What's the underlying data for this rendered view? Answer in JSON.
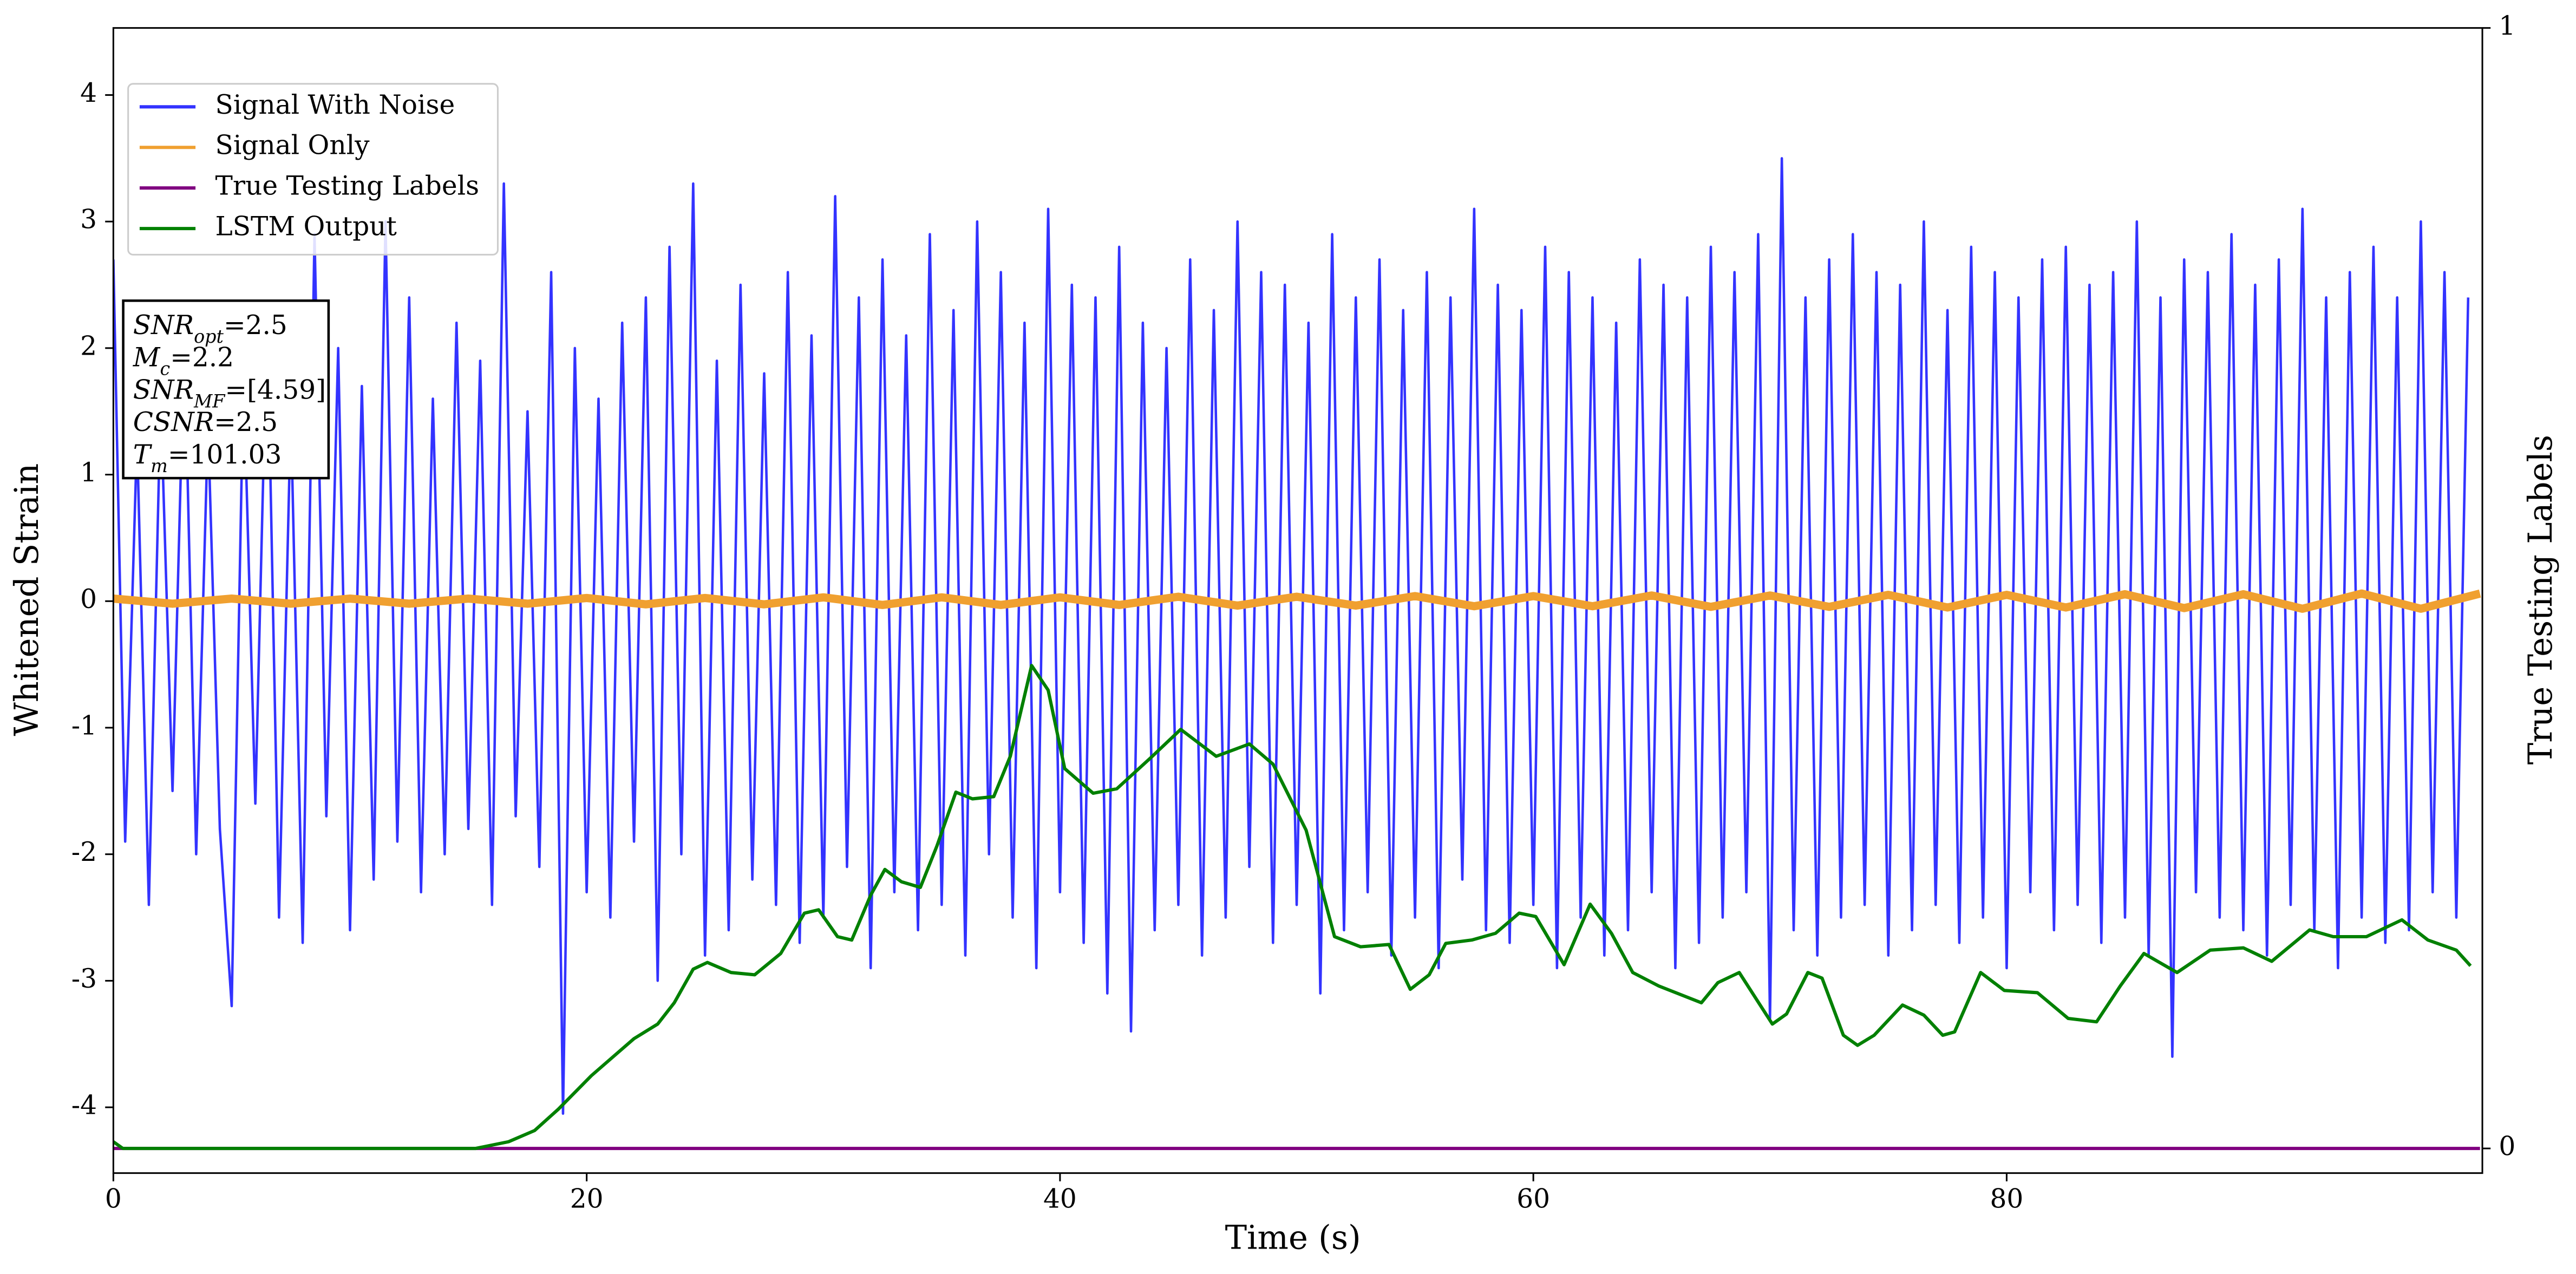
{
  "chart_data": {
    "type": "line",
    "xlabel": "Time (s)",
    "ylabel": "Whitened Strain",
    "y2label": "True Testing Labels",
    "xlim": [
      0,
      100.1
    ],
    "xticks": [
      0,
      20,
      40,
      60,
      80
    ],
    "ylim": [
      -4.52,
      4.53
    ],
    "yticks": [
      -4,
      -3,
      -2,
      -1,
      0,
      1,
      2,
      3,
      4
    ],
    "y2lim": [
      -0.022,
      1
    ],
    "y2ticks": [
      0,
      1
    ],
    "legend": "upper left",
    "annotation": [
      {
        "main": "SNR",
        "sub": "opt",
        "rest": "=2.5"
      },
      {
        "main": "M",
        "sub": "c",
        "rest": "=2.2"
      },
      {
        "main": "SNR",
        "sub": "MF",
        "rest": "=[4.59]"
      },
      {
        "main": "CSNR",
        "rest": "=2.5"
      },
      {
        "main": "T",
        "sub": "m",
        "rest": "=101.03"
      }
    ],
    "series": [
      {
        "name": "Signal With Noise",
        "color": "#3333ff",
        "x": [
          0,
          0.5,
          1,
          1.5,
          2,
          2.5,
          3,
          3.5,
          4,
          4.5,
          5,
          5.5,
          6,
          6.5,
          7,
          7.5,
          8,
          8.5,
          9,
          9.5,
          10,
          10.5,
          11,
          11.5,
          12,
          12.5,
          13,
          13.5,
          14,
          14.5,
          15,
          15.5,
          16,
          16.5,
          17,
          17.5,
          18,
          18.5,
          19,
          19.5,
          20,
          20.5,
          21,
          21.5,
          22,
          22.5,
          23,
          23.5,
          24,
          24.5,
          25,
          25.5,
          26,
          26.5,
          27,
          27.5,
          28,
          28.5,
          29,
          29.5,
          30,
          30.5,
          31,
          31.5,
          32,
          32.5,
          33,
          33.5,
          34,
          34.5,
          35,
          35.5,
          36,
          36.5,
          37,
          37.5,
          38,
          38.5,
          39,
          39.5,
          40,
          40.5,
          41,
          41.5,
          42,
          42.5,
          43,
          43.5,
          44,
          44.5,
          45,
          45.5,
          46,
          46.5,
          47,
          47.5,
          48,
          48.5,
          49,
          49.5,
          50,
          50.5,
          51,
          51.5,
          52,
          52.5,
          53,
          53.5,
          54,
          54.5,
          55,
          55.5,
          56,
          56.5,
          57,
          57.5,
          58,
          58.5,
          59,
          59.5,
          60,
          60.5,
          61,
          61.5,
          62,
          62.5,
          63,
          63.5,
          64,
          64.5,
          65,
          65.5,
          66,
          66.5,
          67,
          67.5,
          68,
          68.5,
          69,
          69.5,
          70,
          70.5,
          71,
          71.5,
          72,
          72.5,
          73,
          73.5,
          74,
          74.5,
          75,
          75.5,
          76,
          76.5,
          77,
          77.5,
          78,
          78.5,
          79,
          79.5,
          80,
          80.5,
          81,
          81.5,
          82,
          82.5,
          83,
          83.5,
          84,
          84.5,
          85,
          85.5,
          86,
          86.5,
          87,
          87.5,
          88,
          88.5,
          89,
          89.5,
          90,
          90.5,
          91,
          91.5,
          92,
          92.5,
          93,
          93.5,
          94,
          94.5,
          95,
          95.5,
          96,
          96.5,
          97,
          97.5,
          98,
          98.5,
          99,
          99.5
        ],
        "values": [
          2.7,
          -1.9,
          1.3,
          -2.4,
          1.6,
          -1.5,
          2.1,
          -2.0,
          1.4,
          -1.8,
          -3.2,
          1.8,
          -1.6,
          2.3,
          -2.5,
          1.5,
          -2.7,
          2.9,
          -1.7,
          2.0,
          -2.6,
          1.7,
          -2.2,
          3.0,
          -1.9,
          2.4,
          -2.3,
          1.6,
          -2.0,
          2.2,
          -1.8,
          1.9,
          -2.4,
          3.3,
          -1.7,
          1.5,
          -2.1,
          2.6,
          -4.05,
          2.0,
          -2.3,
          1.6,
          -2.5,
          2.2,
          -1.9,
          2.4,
          -3.0,
          2.8,
          -2.0,
          3.3,
          -2.8,
          1.9,
          -2.6,
          2.5,
          -2.2,
          1.8,
          -2.4,
          2.6,
          -2.7,
          2.1,
          -2.5,
          3.2,
          -2.1,
          2.4,
          -2.9,
          2.7,
          -2.3,
          2.1,
          -2.6,
          2.9,
          -2.4,
          2.3,
          -2.8,
          3.0,
          -2.0,
          2.6,
          -2.5,
          2.2,
          -2.9,
          3.1,
          -2.3,
          2.5,
          -2.7,
          2.4,
          -3.1,
          2.8,
          -3.4,
          2.2,
          -2.6,
          2.0,
          -2.4,
          2.7,
          -2.8,
          2.3,
          -2.5,
          3.0,
          -2.1,
          2.6,
          -2.7,
          2.5,
          -2.4,
          2.2,
          -3.1,
          2.9,
          -2.6,
          2.4,
          -2.3,
          2.7,
          -2.8,
          2.3,
          -2.5,
          2.6,
          -2.9,
          2.4,
          -2.2,
          3.1,
          -2.6,
          2.5,
          -2.7,
          2.3,
          -2.4,
          2.8,
          -2.9,
          2.6,
          -2.5,
          2.4,
          -2.8,
          2.2,
          -2.6,
          2.7,
          -2.3,
          2.5,
          -2.9,
          2.4,
          -2.7,
          2.8,
          -2.5,
          2.6,
          -2.3,
          2.9,
          -3.3,
          3.5,
          -2.6,
          2.4,
          -2.8,
          2.7,
          -2.5,
          2.9,
          -2.4,
          2.6,
          -2.8,
          2.5,
          -2.6,
          3.0,
          -2.4,
          2.3,
          -2.7,
          2.8,
          -2.5,
          2.6,
          -2.9,
          2.4,
          -2.3,
          2.7,
          -2.6,
          2.8,
          -2.4,
          2.5,
          -2.7,
          2.6,
          -2.5,
          3.0,
          -2.8,
          2.4,
          -3.6,
          2.7,
          -2.3,
          2.6,
          -2.5,
          2.9,
          -2.6,
          2.5,
          -2.8,
          2.7,
          -2.4,
          3.1,
          -2.6,
          2.4,
          -2.9,
          2.6,
          -2.5,
          2.8,
          -2.7,
          2.4,
          -2.6,
          3.0,
          -2.3,
          2.6,
          -2.5,
          2.4
        ]
      },
      {
        "name": "Signal Only",
        "color": "#f0a030",
        "x": [
          0,
          2.5,
          5,
          7.5,
          10,
          12.5,
          15,
          17.5,
          20,
          22.5,
          25,
          27.5,
          30,
          32.5,
          35,
          37.5,
          40,
          42.5,
          45,
          47.5,
          50,
          52.5,
          55,
          57.5,
          60,
          62.5,
          65,
          67.5,
          70,
          72.5,
          75,
          77.5,
          80,
          82.5,
          85,
          87.5,
          90,
          92.5,
          95,
          97.5,
          100
        ],
        "values": [
          0.02,
          -0.02,
          0.02,
          -0.02,
          0.02,
          -0.02,
          0.02,
          -0.02,
          0.025,
          -0.025,
          0.025,
          -0.025,
          0.03,
          -0.03,
          0.03,
          -0.03,
          0.03,
          -0.03,
          0.035,
          -0.035,
          0.035,
          -0.035,
          0.04,
          -0.04,
          0.04,
          -0.04,
          0.045,
          -0.045,
          0.045,
          -0.045,
          0.05,
          -0.05,
          0.05,
          -0.05,
          0.055,
          -0.055,
          0.055,
          -0.06,
          0.06,
          -0.06,
          0.06
        ]
      },
      {
        "name": "True Testing Labels",
        "color": "#800080",
        "axis": "y2",
        "x": [
          0,
          100
        ],
        "values": [
          0,
          0
        ]
      },
      {
        "name": "LSTM Output",
        "color": "#008000",
        "axis": "y2",
        "x": [
          0,
          0.4,
          15.3,
          16.7,
          17.8,
          18.8,
          20.2,
          22,
          23,
          23.7,
          24.5,
          25.1,
          26.1,
          27.1,
          28.2,
          29.2,
          29.8,
          30.6,
          31.2,
          32,
          32.6,
          33.3,
          34.1,
          34.8,
          35.6,
          36.3,
          37.2,
          37.9,
          38.8,
          39.5,
          40.2,
          41.4,
          42.4,
          43.8,
          45.1,
          46.6,
          48,
          49,
          50.4,
          51.6,
          52.7,
          53.9,
          54.8,
          55.6,
          56.3,
          57.4,
          58.4,
          59.4,
          60.1,
          61.3,
          62.4,
          63.3,
          64.2,
          65.3,
          67.1,
          67.8,
          68.7,
          70.1,
          70.7,
          71.6,
          72.2,
          73.1,
          73.7,
          74.4,
          75.6,
          76.5,
          77.3,
          77.8,
          78.9,
          79.9,
          81.3,
          82.6,
          83.8,
          84.8,
          85.8,
          87.2,
          88.6,
          90,
          91.2,
          92.8,
          93.8,
          95.2,
          96.7,
          97.8,
          99,
          99.6
        ],
        "values": [
          0.006,
          0,
          0,
          0.006,
          0.016,
          0.035,
          0.065,
          0.098,
          0.111,
          0.13,
          0.16,
          0.166,
          0.157,
          0.155,
          0.174,
          0.21,
          0.213,
          0.189,
          0.186,
          0.226,
          0.249,
          0.238,
          0.233,
          0.27,
          0.318,
          0.312,
          0.314,
          0.35,
          0.431,
          0.409,
          0.339,
          0.317,
          0.321,
          0.348,
          0.374,
          0.35,
          0.361,
          0.343,
          0.284,
          0.189,
          0.18,
          0.182,
          0.142,
          0.155,
          0.183,
          0.186,
          0.192,
          0.21,
          0.207,
          0.164,
          0.218,
          0.192,
          0.157,
          0.145,
          0.13,
          0.148,
          0.157,
          0.111,
          0.12,
          0.157,
          0.152,
          0.101,
          0.092,
          0.101,
          0.128,
          0.119,
          0.101,
          0.104,
          0.157,
          0.141,
          0.139,
          0.116,
          0.113,
          0.145,
          0.174,
          0.157,
          0.177,
          0.179,
          0.167,
          0.195,
          0.189,
          0.189,
          0.204,
          0.186,
          0.177,
          0.163
        ]
      }
    ]
  }
}
